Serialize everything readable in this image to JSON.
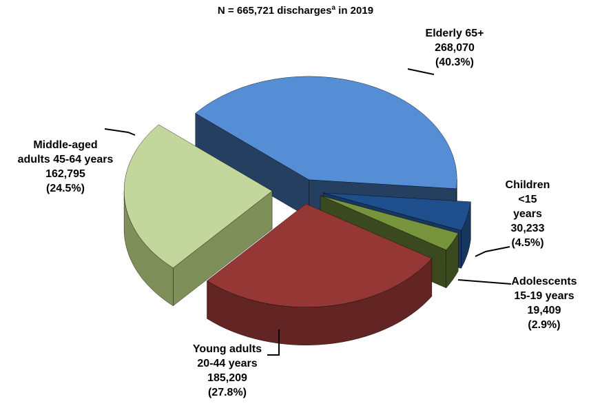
{
  "chart_data": {
    "type": "pie3d",
    "title": "N = 665,721  discharges",
    "title_note": "a",
    "title_suffix": " in 2019",
    "categories": [
      "Elderly 65+",
      "Children <15\nyears",
      "Adolescents\n15-19 years",
      "Young adults\n20-44 years",
      "Middle-aged\nadults 45-64 years"
    ],
    "values": [
      268070,
      30233,
      19409,
      185209,
      162795
    ],
    "value_labels": [
      "268,070",
      "30,233",
      "19,409",
      "185,209",
      "162,795"
    ],
    "percents": [
      40.3,
      4.5,
      2.9,
      27.8,
      24.5
    ],
    "percent_labels": [
      "(40.3%)",
      "(4.5%)",
      "(2.9%)",
      "(27.8%)",
      "(24.5%)"
    ],
    "colors": [
      "#558ed5",
      "#1f4e8c",
      "#77933c",
      "#953735",
      "#c3d69b"
    ],
    "side_colors": [
      "#243f60",
      "#17375e",
      "#3b4a1e",
      "#632523",
      "#7f8f5a"
    ]
  }
}
